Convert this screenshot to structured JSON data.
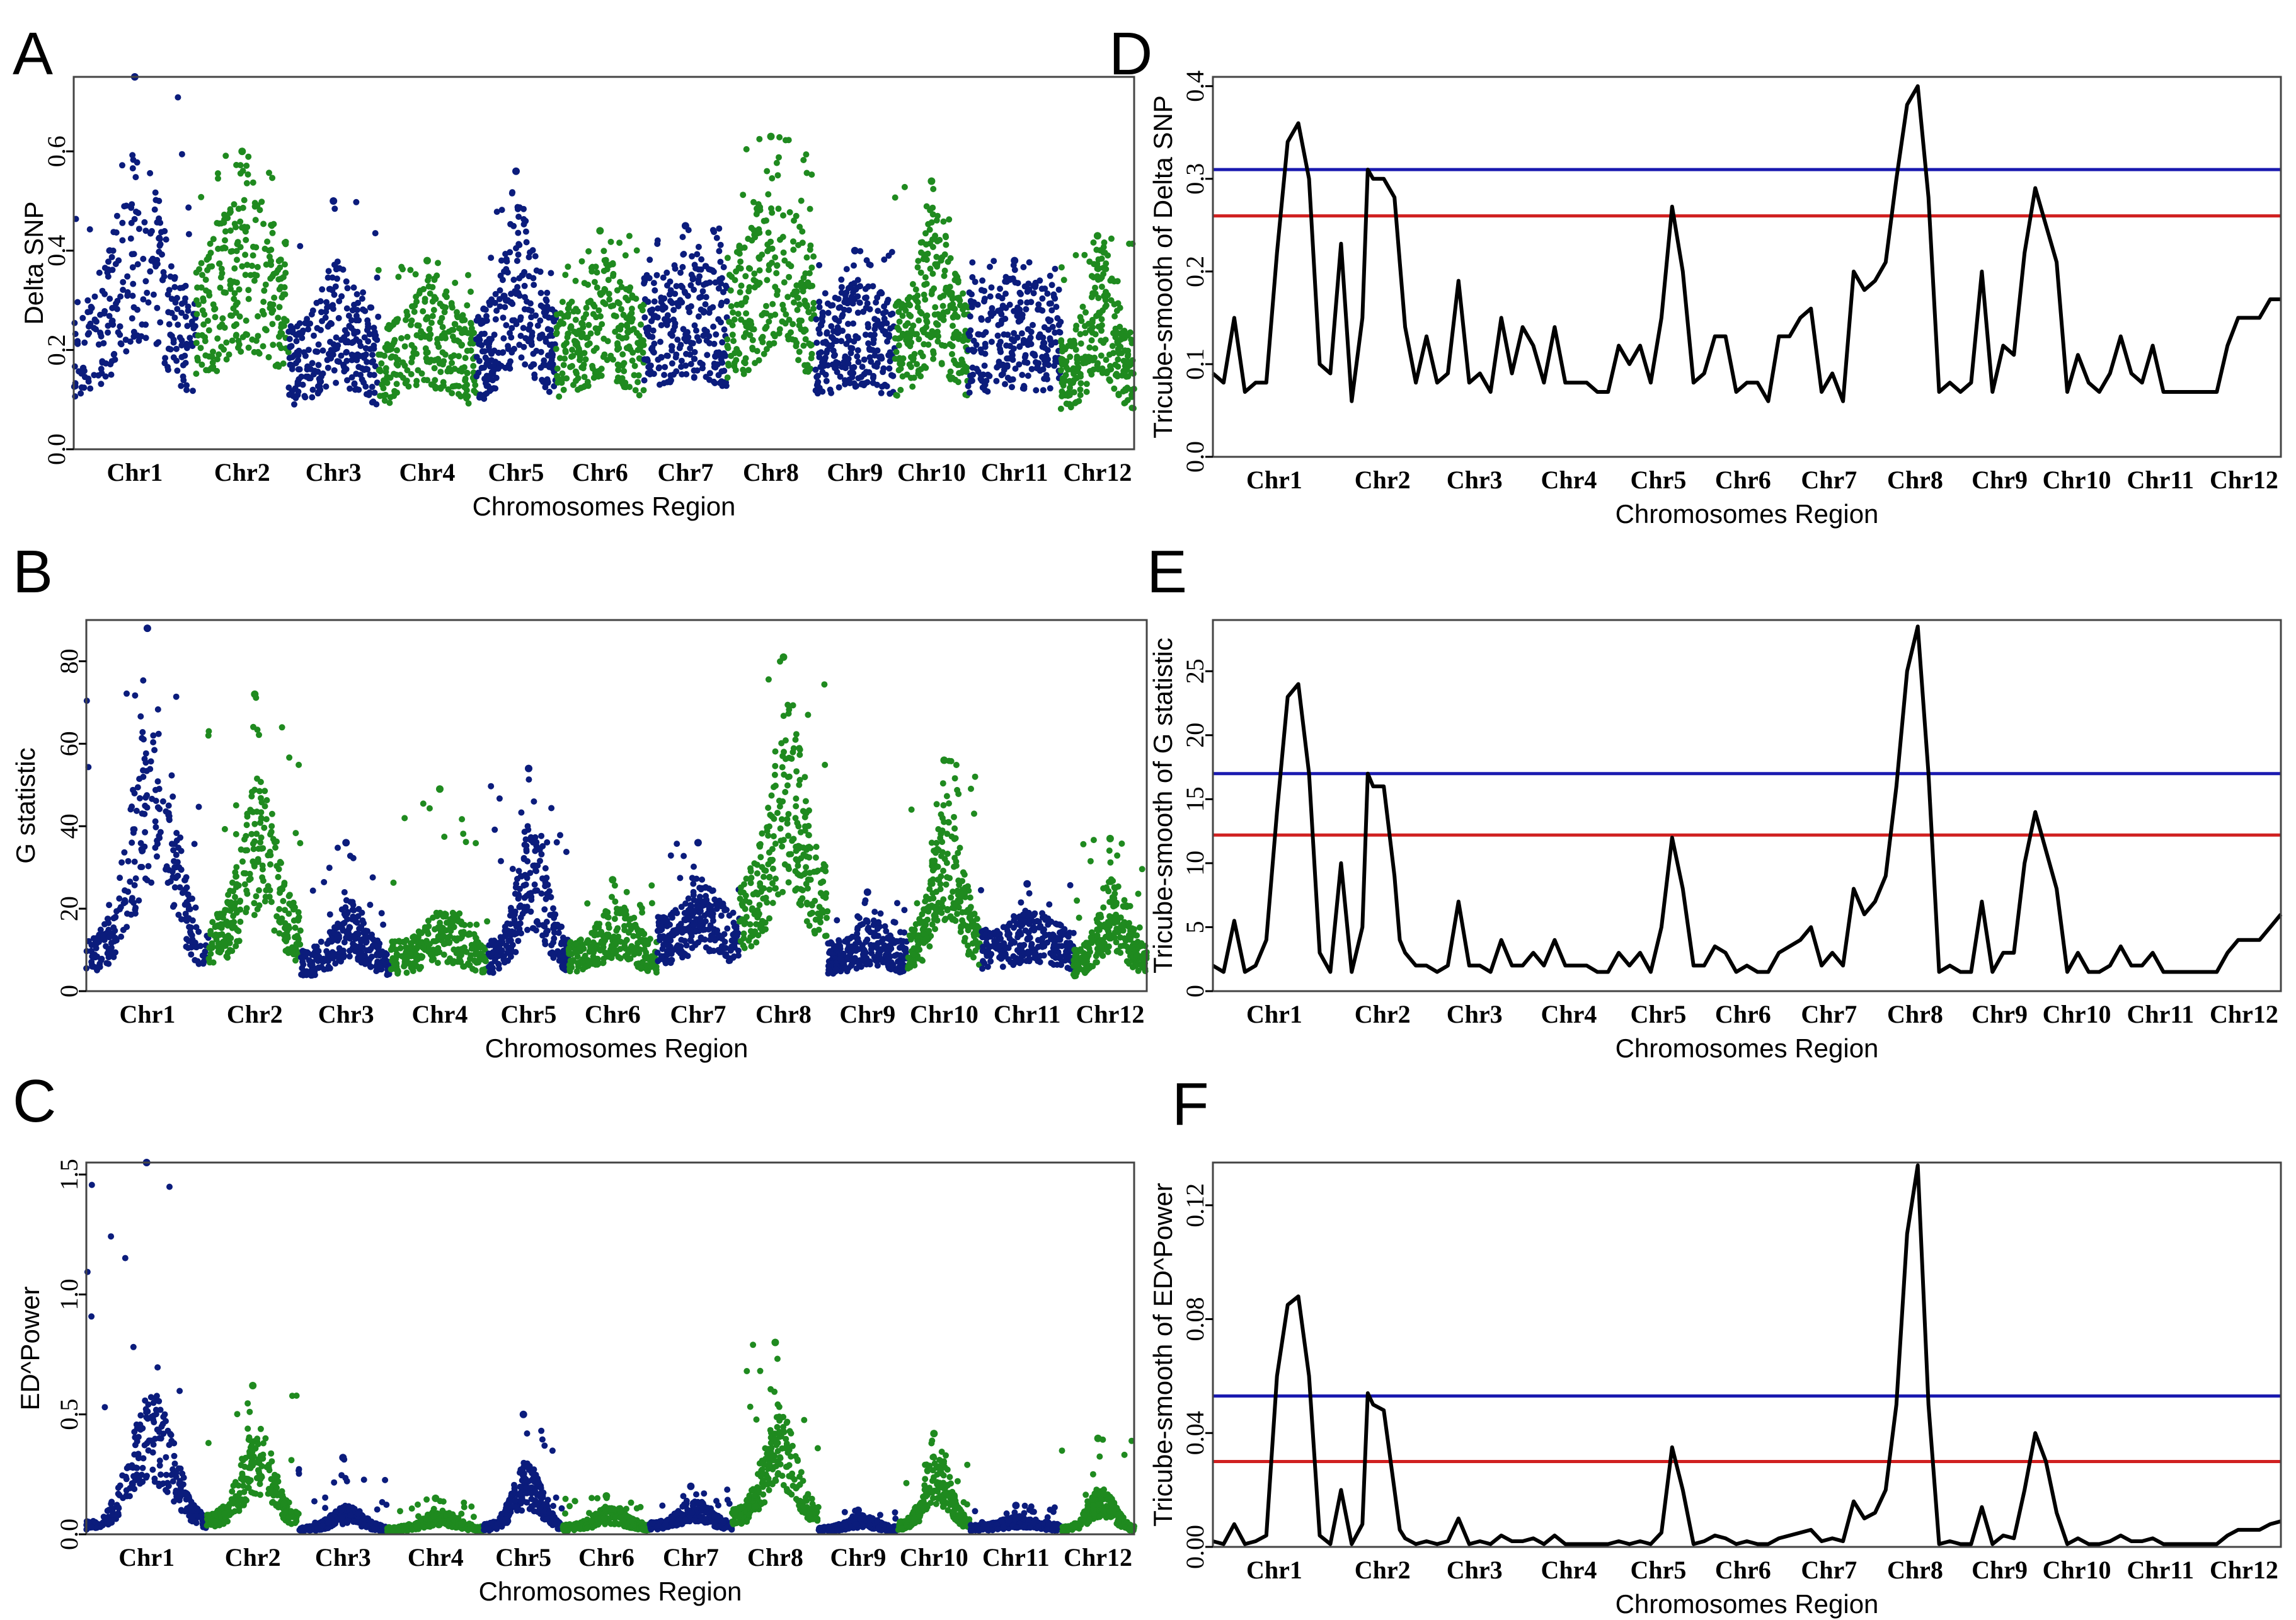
{
  "figure": {
    "colors": {
      "blue": "#0b1c7c",
      "green": "#1f8a1f",
      "line": "#000000",
      "threshold_upper": "#1a1ab0",
      "threshold_lower": "#d02020"
    }
  },
  "chart_data": [
    {
      "panel": "A",
      "type": "scatter",
      "xlabel": "Chromosomes Region",
      "ylabel": "Delta SNP",
      "categories": [
        "Chr1",
        "Chr2",
        "Chr3",
        "Chr4",
        "Chr5",
        "Chr6",
        "Chr7",
        "Chr8",
        "Chr9",
        "Chr10",
        "Chr11",
        "Chr12"
      ],
      "ylim": [
        0,
        0.75
      ],
      "yticks": [
        0.0,
        0.2,
        0.4,
        0.6
      ],
      "ytick_labels": [
        "0.0",
        "0.2",
        "0.4",
        "0.6"
      ],
      "alternating_colors": [
        "#0b1c7c",
        "#1f8a1f"
      ],
      "chromosome_profile": [
        {
          "chr": "Chr1",
          "baseline": 0.3,
          "peak": 0.62,
          "max": 0.75
        },
        {
          "chr": "Chr2",
          "baseline": 0.42,
          "peak": 0.57,
          "max": 0.6
        },
        {
          "chr": "Chr3",
          "baseline": 0.25,
          "peak": 0.38,
          "max": 0.5
        },
        {
          "chr": "Chr4",
          "baseline": 0.25,
          "peak": 0.35,
          "max": 0.38
        },
        {
          "chr": "Chr5",
          "baseline": 0.28,
          "peak": 0.5,
          "max": 0.56
        },
        {
          "chr": "Chr6",
          "baseline": 0.3,
          "peak": 0.4,
          "max": 0.44
        },
        {
          "chr": "Chr7",
          "baseline": 0.35,
          "peak": 0.4,
          "max": 0.45
        },
        {
          "chr": "Chr8",
          "baseline": 0.4,
          "peak": 0.58,
          "max": 0.63
        },
        {
          "chr": "Chr9",
          "baseline": 0.3,
          "peak": 0.36,
          "max": 0.4
        },
        {
          "chr": "Chr10",
          "baseline": 0.3,
          "peak": 0.5,
          "max": 0.54
        },
        {
          "chr": "Chr11",
          "baseline": 0.32,
          "peak": 0.35,
          "max": 0.38
        },
        {
          "chr": "Chr12",
          "baseline": 0.22,
          "peak": 0.42,
          "max": 0.43
        }
      ]
    },
    {
      "panel": "B",
      "type": "scatter",
      "xlabel": "Chromosomes Region",
      "ylabel": "G statistic",
      "categories": [
        "Chr1",
        "Chr2",
        "Chr3",
        "Chr4",
        "Chr5",
        "Chr6",
        "Chr7",
        "Chr8",
        "Chr9",
        "Chr10",
        "Chr11",
        "Chr12"
      ],
      "ylim": [
        0,
        90
      ],
      "yticks": [
        0,
        20,
        40,
        60,
        80
      ],
      "ytick_labels": [
        "0",
        "20",
        "40",
        "60",
        "80"
      ],
      "alternating_colors": [
        "#0b1c7c",
        "#1f8a1f"
      ],
      "chromosome_profile": [
        {
          "chr": "Chr1",
          "baseline": 12,
          "peak": 70,
          "max": 88
        },
        {
          "chr": "Chr2",
          "baseline": 18,
          "peak": 52,
          "max": 72
        },
        {
          "chr": "Chr3",
          "baseline": 10,
          "peak": 22,
          "max": 36
        },
        {
          "chr": "Chr4",
          "baseline": 12,
          "peak": 20,
          "max": 49
        },
        {
          "chr": "Chr5",
          "baseline": 12,
          "peak": 42,
          "max": 54
        },
        {
          "chr": "Chr6",
          "baseline": 12,
          "peak": 22,
          "max": 27
        },
        {
          "chr": "Chr7",
          "baseline": 18,
          "peak": 28,
          "max": 36
        },
        {
          "chr": "Chr8",
          "baseline": 28,
          "peak": 70,
          "max": 81
        },
        {
          "chr": "Chr9",
          "baseline": 12,
          "peak": 18,
          "max": 24
        },
        {
          "chr": "Chr10",
          "baseline": 15,
          "peak": 50,
          "max": 56
        },
        {
          "chr": "Chr11",
          "baseline": 15,
          "peak": 20,
          "max": 26
        },
        {
          "chr": "Chr12",
          "baseline": 10,
          "peak": 28,
          "max": 37
        }
      ]
    },
    {
      "panel": "C",
      "type": "scatter",
      "xlabel": "Chromosomes Region",
      "ylabel": "ED^Power",
      "categories": [
        "Chr1",
        "Chr2",
        "Chr3",
        "Chr4",
        "Chr5",
        "Chr6",
        "Chr7",
        "Chr8",
        "Chr9",
        "Chr10",
        "Chr11",
        "Chr12"
      ],
      "ylim": [
        0,
        1.55
      ],
      "yticks": [
        0.0,
        0.5,
        1.0,
        1.5
      ],
      "ytick_labels": [
        "0.0",
        "0.5",
        "1.0",
        "1.5"
      ],
      "alternating_colors": [
        "#0b1c7c",
        "#1f8a1f"
      ],
      "chromosome_profile": [
        {
          "chr": "Chr1",
          "baseline": 0.05,
          "peak": 0.6,
          "max": 1.55
        },
        {
          "chr": "Chr2",
          "baseline": 0.08,
          "peak": 0.45,
          "max": 0.62
        },
        {
          "chr": "Chr3",
          "baseline": 0.03,
          "peak": 0.12,
          "max": 0.32
        },
        {
          "chr": "Chr4",
          "baseline": 0.03,
          "peak": 0.1,
          "max": 0.15
        },
        {
          "chr": "Chr5",
          "baseline": 0.04,
          "peak": 0.3,
          "max": 0.5
        },
        {
          "chr": "Chr6",
          "baseline": 0.04,
          "peak": 0.12,
          "max": 0.16
        },
        {
          "chr": "Chr7",
          "baseline": 0.05,
          "peak": 0.15,
          "max": 0.2
        },
        {
          "chr": "Chr8",
          "baseline": 0.1,
          "peak": 0.55,
          "max": 0.8
        },
        {
          "chr": "Chr9",
          "baseline": 0.03,
          "peak": 0.08,
          "max": 0.1
        },
        {
          "chr": "Chr10",
          "baseline": 0.05,
          "peak": 0.35,
          "max": 0.42
        },
        {
          "chr": "Chr11",
          "baseline": 0.04,
          "peak": 0.08,
          "max": 0.12
        },
        {
          "chr": "Chr12",
          "baseline": 0.03,
          "peak": 0.2,
          "max": 0.4
        }
      ]
    },
    {
      "panel": "D",
      "type": "line",
      "xlabel": "Chromosomes Region",
      "ylabel": "Tricube-smooth of Delta SNP",
      "categories": [
        "Chr1",
        "Chr2",
        "Chr3",
        "Chr4",
        "Chr5",
        "Chr6",
        "Chr7",
        "Chr8",
        "Chr9",
        "Chr10",
        "Chr11",
        "Chr12"
      ],
      "ylim": [
        0,
        0.41
      ],
      "yticks": [
        0.0,
        0.1,
        0.2,
        0.3,
        0.4
      ],
      "ytick_labels": [
        "0.0",
        "0.1",
        "0.2",
        "0.3",
        "0.4"
      ],
      "thresholds": [
        {
          "color": "#1a1ab0",
          "value": 0.31
        },
        {
          "color": "#d02020",
          "value": 0.26
        }
      ],
      "x": [
        0,
        0.01,
        0.02,
        0.03,
        0.04,
        0.05,
        0.06,
        0.07,
        0.08,
        0.09,
        0.1,
        0.11,
        0.12,
        0.13,
        0.14,
        0.145,
        0.15,
        0.16,
        0.17,
        0.175,
        0.18,
        0.19,
        0.2,
        0.21,
        0.22,
        0.23,
        0.24,
        0.25,
        0.26,
        0.27,
        0.28,
        0.29,
        0.3,
        0.31,
        0.32,
        0.33,
        0.34,
        0.35,
        0.36,
        0.37,
        0.38,
        0.39,
        0.4,
        0.41,
        0.42,
        0.43,
        0.44,
        0.45,
        0.46,
        0.47,
        0.48,
        0.49,
        0.5,
        0.51,
        0.52,
        0.53,
        0.54,
        0.55,
        0.56,
        0.57,
        0.58,
        0.59,
        0.6,
        0.61,
        0.62,
        0.63,
        0.64,
        0.65,
        0.66,
        0.67,
        0.68,
        0.69,
        0.7,
        0.71,
        0.72,
        0.73,
        0.74,
        0.75,
        0.76,
        0.77,
        0.78,
        0.79,
        0.8,
        0.81,
        0.82,
        0.83,
        0.84,
        0.85,
        0.86,
        0.87,
        0.88,
        0.89,
        0.9,
        0.91,
        0.92,
        0.93,
        0.94,
        0.95,
        0.96,
        0.97,
        0.98,
        0.99,
        1.0
      ],
      "y": [
        0.09,
        0.08,
        0.15,
        0.07,
        0.08,
        0.08,
        0.22,
        0.34,
        0.36,
        0.3,
        0.1,
        0.09,
        0.23,
        0.06,
        0.15,
        0.31,
        0.3,
        0.3,
        0.28,
        0.21,
        0.14,
        0.08,
        0.13,
        0.08,
        0.09,
        0.19,
        0.08,
        0.09,
        0.07,
        0.15,
        0.09,
        0.14,
        0.12,
        0.08,
        0.14,
        0.08,
        0.08,
        0.08,
        0.07,
        0.07,
        0.12,
        0.1,
        0.12,
        0.08,
        0.15,
        0.27,
        0.2,
        0.08,
        0.09,
        0.13,
        0.13,
        0.07,
        0.08,
        0.08,
        0.06,
        0.13,
        0.13,
        0.15,
        0.16,
        0.07,
        0.09,
        0.06,
        0.2,
        0.18,
        0.19,
        0.21,
        0.3,
        0.38,
        0.4,
        0.28,
        0.07,
        0.08,
        0.07,
        0.08,
        0.2,
        0.07,
        0.12,
        0.11,
        0.22,
        0.29,
        0.25,
        0.21,
        0.07,
        0.11,
        0.08,
        0.07,
        0.09,
        0.13,
        0.09,
        0.08,
        0.12,
        0.07,
        0.07,
        0.07,
        0.07,
        0.07,
        0.07,
        0.12,
        0.15,
        0.15,
        0.15,
        0.17,
        0.17
      ]
    },
    {
      "panel": "E",
      "type": "line",
      "xlabel": "Chromosomes Region",
      "ylabel": "Tricube-smooth of G statistic",
      "categories": [
        "Chr1",
        "Chr2",
        "Chr3",
        "Chr4",
        "Chr5",
        "Chr6",
        "Chr7",
        "Chr8",
        "Chr9",
        "Chr10",
        "Chr11",
        "Chr12"
      ],
      "ylim": [
        0,
        29
      ],
      "yticks": [
        0,
        5,
        10,
        15,
        20,
        25
      ],
      "ytick_labels": [
        "0",
        "5",
        "10",
        "15",
        "20",
        "25"
      ],
      "thresholds": [
        {
          "color": "#1a1ab0",
          "value": 17
        },
        {
          "color": "#d02020",
          "value": 12.2
        }
      ],
      "x": [
        0,
        0.01,
        0.02,
        0.03,
        0.04,
        0.05,
        0.06,
        0.07,
        0.08,
        0.09,
        0.1,
        0.11,
        0.12,
        0.13,
        0.14,
        0.145,
        0.15,
        0.16,
        0.17,
        0.175,
        0.18,
        0.19,
        0.2,
        0.21,
        0.22,
        0.23,
        0.24,
        0.25,
        0.26,
        0.27,
        0.28,
        0.29,
        0.3,
        0.31,
        0.32,
        0.33,
        0.34,
        0.35,
        0.36,
        0.37,
        0.38,
        0.39,
        0.4,
        0.41,
        0.42,
        0.43,
        0.44,
        0.45,
        0.46,
        0.47,
        0.48,
        0.49,
        0.5,
        0.51,
        0.52,
        0.53,
        0.54,
        0.55,
        0.56,
        0.57,
        0.58,
        0.59,
        0.6,
        0.61,
        0.62,
        0.63,
        0.64,
        0.65,
        0.66,
        0.67,
        0.68,
        0.69,
        0.7,
        0.71,
        0.72,
        0.73,
        0.74,
        0.75,
        0.76,
        0.77,
        0.78,
        0.79,
        0.8,
        0.81,
        0.82,
        0.83,
        0.84,
        0.85,
        0.86,
        0.87,
        0.88,
        0.89,
        0.9,
        0.91,
        0.92,
        0.93,
        0.94,
        0.95,
        0.96,
        0.97,
        0.98,
        0.99,
        1.0
      ],
      "y": [
        2,
        1.5,
        5.5,
        1.5,
        2,
        4,
        14,
        23,
        24,
        17,
        3,
        1.5,
        10,
        1.5,
        5,
        17,
        16,
        16,
        9,
        4,
        3,
        2,
        2,
        1.5,
        2,
        7,
        2,
        2,
        1.5,
        4,
        2,
        2,
        3,
        2,
        4,
        2,
        2,
        2,
        1.5,
        1.5,
        3,
        2,
        3,
        1.5,
        5,
        12,
        8,
        2,
        2,
        3.5,
        3,
        1.5,
        2,
        1.5,
        1.5,
        3,
        3.5,
        4,
        5,
        2,
        3,
        2,
        8,
        6,
        7,
        9,
        16,
        25,
        28.5,
        17,
        1.5,
        2,
        1.5,
        1.5,
        7,
        1.5,
        3,
        3,
        10,
        14,
        11,
        8,
        1.5,
        3,
        1.5,
        1.5,
        2,
        3.5,
        2,
        2,
        3,
        1.5,
        1.5,
        1.5,
        1.5,
        1.5,
        1.5,
        3,
        4,
        4,
        4,
        5,
        6
      ]
    },
    {
      "panel": "F",
      "type": "line",
      "xlabel": "Chromosomes Region",
      "ylabel": "Tricube-smooth of ED^Power",
      "categories": [
        "Chr1",
        "Chr2",
        "Chr3",
        "Chr4",
        "Chr5",
        "Chr6",
        "Chr7",
        "Chr8",
        "Chr9",
        "Chr10",
        "Chr11",
        "Chr12"
      ],
      "ylim": [
        0,
        0.135
      ],
      "yticks": [
        0.0,
        0.04,
        0.08,
        0.12
      ],
      "ytick_labels": [
        "0.00",
        "0.04",
        "0.08",
        "0.12"
      ],
      "thresholds": [
        {
          "color": "#1a1ab0",
          "value": 0.053
        },
        {
          "color": "#d02020",
          "value": 0.03
        }
      ],
      "x": [
        0,
        0.01,
        0.02,
        0.03,
        0.04,
        0.05,
        0.06,
        0.07,
        0.08,
        0.09,
        0.1,
        0.11,
        0.12,
        0.13,
        0.14,
        0.145,
        0.15,
        0.16,
        0.17,
        0.175,
        0.18,
        0.19,
        0.2,
        0.21,
        0.22,
        0.23,
        0.24,
        0.25,
        0.26,
        0.27,
        0.28,
        0.29,
        0.3,
        0.31,
        0.32,
        0.33,
        0.34,
        0.35,
        0.36,
        0.37,
        0.38,
        0.39,
        0.4,
        0.41,
        0.42,
        0.43,
        0.44,
        0.45,
        0.46,
        0.47,
        0.48,
        0.49,
        0.5,
        0.51,
        0.52,
        0.53,
        0.54,
        0.55,
        0.56,
        0.57,
        0.58,
        0.59,
        0.6,
        0.61,
        0.62,
        0.63,
        0.64,
        0.65,
        0.66,
        0.67,
        0.68,
        0.69,
        0.7,
        0.71,
        0.72,
        0.73,
        0.74,
        0.75,
        0.76,
        0.77,
        0.78,
        0.79,
        0.8,
        0.81,
        0.82,
        0.83,
        0.84,
        0.85,
        0.86,
        0.87,
        0.88,
        0.89,
        0.9,
        0.91,
        0.92,
        0.93,
        0.94,
        0.95,
        0.96,
        0.97,
        0.98,
        0.99,
        1.0
      ],
      "y": [
        0.002,
        0.001,
        0.008,
        0.001,
        0.002,
        0.004,
        0.06,
        0.085,
        0.088,
        0.06,
        0.004,
        0.001,
        0.02,
        0.001,
        0.008,
        0.054,
        0.05,
        0.048,
        0.02,
        0.006,
        0.003,
        0.001,
        0.002,
        0.001,
        0.002,
        0.01,
        0.001,
        0.002,
        0.001,
        0.004,
        0.002,
        0.002,
        0.003,
        0.001,
        0.004,
        0.001,
        0.001,
        0.001,
        0.001,
        0.001,
        0.002,
        0.001,
        0.002,
        0.001,
        0.005,
        0.035,
        0.02,
        0.001,
        0.002,
        0.004,
        0.003,
        0.001,
        0.002,
        0.001,
        0.001,
        0.003,
        0.004,
        0.005,
        0.006,
        0.002,
        0.003,
        0.002,
        0.016,
        0.01,
        0.012,
        0.02,
        0.05,
        0.11,
        0.134,
        0.05,
        0.001,
        0.002,
        0.001,
        0.001,
        0.014,
        0.001,
        0.004,
        0.003,
        0.02,
        0.04,
        0.03,
        0.012,
        0.001,
        0.003,
        0.001,
        0.001,
        0.002,
        0.004,
        0.002,
        0.002,
        0.003,
        0.001,
        0.001,
        0.001,
        0.001,
        0.001,
        0.001,
        0.004,
        0.006,
        0.006,
        0.006,
        0.008,
        0.009
      ]
    }
  ]
}
